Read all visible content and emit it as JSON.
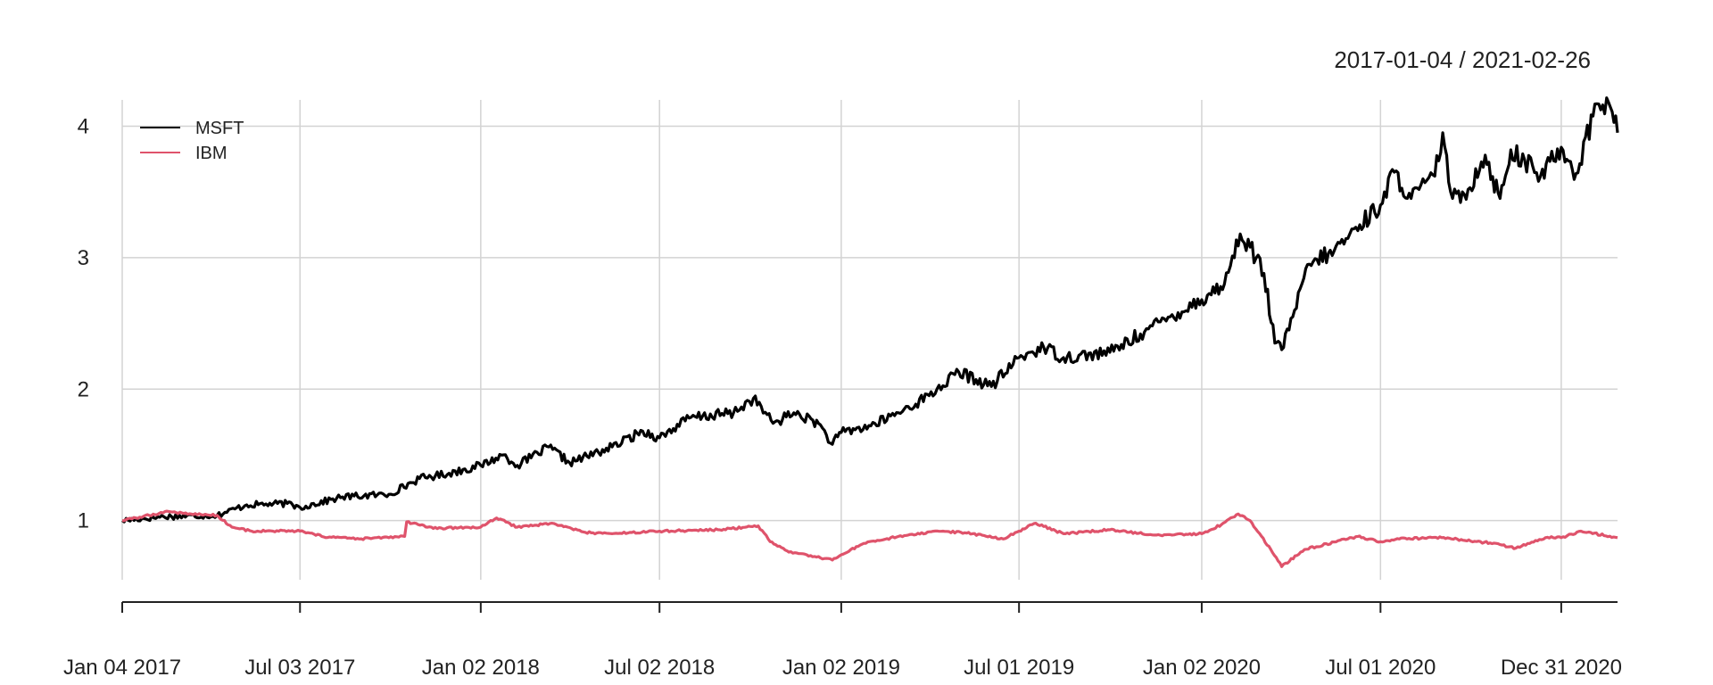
{
  "chart_data": {
    "type": "line",
    "date_range": "2017-01-04 / 2021-02-26",
    "xlabel": "",
    "ylabel": "",
    "x_start": "2017-01-04",
    "x_end": "2021-02-26",
    "ylim": [
      0.55,
      4.2
    ],
    "y_ticks": [
      1,
      2,
      3,
      4
    ],
    "y_tick_labels": [
      "1",
      "2",
      "3",
      "4"
    ],
    "x_ticks": [
      "2017-01-04",
      "2017-07-03",
      "2018-01-02",
      "2018-07-02",
      "2019-01-02",
      "2019-07-01",
      "2020-01-02",
      "2020-07-01",
      "2020-12-31"
    ],
    "x_tick_labels": [
      "Jan 04 2017",
      "Jul 03 2017",
      "Jan 02 2018",
      "Jul 02 2018",
      "Jan 02 2019",
      "Jul 01 2019",
      "Jan 02 2020",
      "Jul 01 2020",
      "Dec 31 2020"
    ],
    "grid": true,
    "legend_position": "top-left",
    "series": [
      {
        "name": "MSFT",
        "color": "#000000",
        "points": [
          [
            "2017-01-04",
            1.0
          ],
          [
            "2017-02-15",
            1.03
          ],
          [
            "2017-04-10",
            1.04
          ],
          [
            "2017-05-10",
            1.12
          ],
          [
            "2017-06-20",
            1.13
          ],
          [
            "2017-07-03",
            1.1
          ],
          [
            "2017-08-15",
            1.18
          ],
          [
            "2017-10-01",
            1.2
          ],
          [
            "2017-11-01",
            1.32
          ],
          [
            "2017-12-01",
            1.36
          ],
          [
            "2018-01-02",
            1.42
          ],
          [
            "2018-01-25",
            1.5
          ],
          [
            "2018-02-08",
            1.42
          ],
          [
            "2018-03-12",
            1.56
          ],
          [
            "2018-04-02",
            1.44
          ],
          [
            "2018-05-15",
            1.56
          ],
          [
            "2018-06-15",
            1.68
          ],
          [
            "2018-07-02",
            1.63
          ],
          [
            "2018-08-01",
            1.78
          ],
          [
            "2018-09-15",
            1.82
          ],
          [
            "2018-10-05",
            1.93
          ],
          [
            "2018-10-25",
            1.74
          ],
          [
            "2018-11-15",
            1.82
          ],
          [
            "2018-12-10",
            1.74
          ],
          [
            "2018-12-24",
            1.58
          ],
          [
            "2019-01-02",
            1.67
          ],
          [
            "2019-02-01",
            1.72
          ],
          [
            "2019-03-01",
            1.82
          ],
          [
            "2019-04-01",
            1.95
          ],
          [
            "2019-05-01",
            2.13
          ],
          [
            "2019-06-03",
            2.02
          ],
          [
            "2019-07-01",
            2.24
          ],
          [
            "2019-07-26",
            2.32
          ],
          [
            "2019-08-15",
            2.24
          ],
          [
            "2019-10-01",
            2.28
          ],
          [
            "2019-11-01",
            2.42
          ],
          [
            "2019-12-01",
            2.55
          ],
          [
            "2020-01-02",
            2.68
          ],
          [
            "2020-01-25",
            2.8
          ],
          [
            "2020-02-10",
            3.18
          ],
          [
            "2020-02-20",
            3.08
          ],
          [
            "2020-03-05",
            2.88
          ],
          [
            "2020-03-16",
            2.35
          ],
          [
            "2020-03-23",
            2.3
          ],
          [
            "2020-04-05",
            2.6
          ],
          [
            "2020-04-20",
            2.95
          ],
          [
            "2020-05-15",
            3.05
          ],
          [
            "2020-06-10",
            3.25
          ],
          [
            "2020-07-01",
            3.4
          ],
          [
            "2020-07-15",
            3.65
          ],
          [
            "2020-08-01",
            3.45
          ],
          [
            "2020-08-25",
            3.62
          ],
          [
            "2020-09-02",
            3.95
          ],
          [
            "2020-09-10",
            3.5
          ],
          [
            "2020-09-20",
            3.42
          ],
          [
            "2020-10-15",
            3.78
          ],
          [
            "2020-10-30",
            3.45
          ],
          [
            "2020-11-10",
            3.82
          ],
          [
            "2020-12-10",
            3.62
          ],
          [
            "2020-12-31",
            3.84
          ],
          [
            "2021-01-15",
            3.64
          ],
          [
            "2021-02-05",
            4.17
          ],
          [
            "2021-02-17",
            4.18
          ],
          [
            "2021-02-26",
            3.95
          ]
        ]
      },
      {
        "name": "IBM",
        "color": "#df536b",
        "points": [
          [
            "2017-01-04",
            1.0
          ],
          [
            "2017-02-20",
            1.07
          ],
          [
            "2017-03-15",
            1.05
          ],
          [
            "2017-04-10",
            1.04
          ],
          [
            "2017-04-25",
            0.95
          ],
          [
            "2017-05-15",
            0.92
          ],
          [
            "2017-07-03",
            0.92
          ],
          [
            "2017-07-25",
            0.88
          ],
          [
            "2017-09-01",
            0.86
          ],
          [
            "2017-10-17",
            0.88
          ],
          [
            "2017-10-19",
            0.99
          ],
          [
            "2017-11-15",
            0.94
          ],
          [
            "2018-01-02",
            0.95
          ],
          [
            "2018-01-18",
            1.02
          ],
          [
            "2018-02-08",
            0.95
          ],
          [
            "2018-03-15",
            0.98
          ],
          [
            "2018-04-18",
            0.91
          ],
          [
            "2018-05-15",
            0.9
          ],
          [
            "2018-07-02",
            0.92
          ],
          [
            "2018-09-01",
            0.93
          ],
          [
            "2018-10-10",
            0.96
          ],
          [
            "2018-10-22",
            0.84
          ],
          [
            "2018-11-10",
            0.76
          ],
          [
            "2018-12-24",
            0.7
          ],
          [
            "2019-01-02",
            0.74
          ],
          [
            "2019-01-23",
            0.82
          ],
          [
            "2019-03-01",
            0.88
          ],
          [
            "2019-04-15",
            0.92
          ],
          [
            "2019-05-15",
            0.9
          ],
          [
            "2019-06-15",
            0.86
          ],
          [
            "2019-07-01",
            0.92
          ],
          [
            "2019-07-18",
            0.98
          ],
          [
            "2019-08-15",
            0.9
          ],
          [
            "2019-10-01",
            0.93
          ],
          [
            "2019-11-15",
            0.89
          ],
          [
            "2020-01-02",
            0.9
          ],
          [
            "2020-01-22",
            0.97
          ],
          [
            "2020-02-08",
            1.05
          ],
          [
            "2020-02-20",
            1.0
          ],
          [
            "2020-03-12",
            0.78
          ],
          [
            "2020-03-23",
            0.65
          ],
          [
            "2020-04-15",
            0.78
          ],
          [
            "2020-06-08",
            0.88
          ],
          [
            "2020-07-01",
            0.84
          ],
          [
            "2020-07-20",
            0.86
          ],
          [
            "2020-09-01",
            0.87
          ],
          [
            "2020-10-20",
            0.83
          ],
          [
            "2020-11-15",
            0.79
          ],
          [
            "2020-12-15",
            0.87
          ],
          [
            "2020-12-31",
            0.87
          ],
          [
            "2021-01-20",
            0.92
          ],
          [
            "2021-02-26",
            0.87
          ]
        ]
      }
    ]
  }
}
